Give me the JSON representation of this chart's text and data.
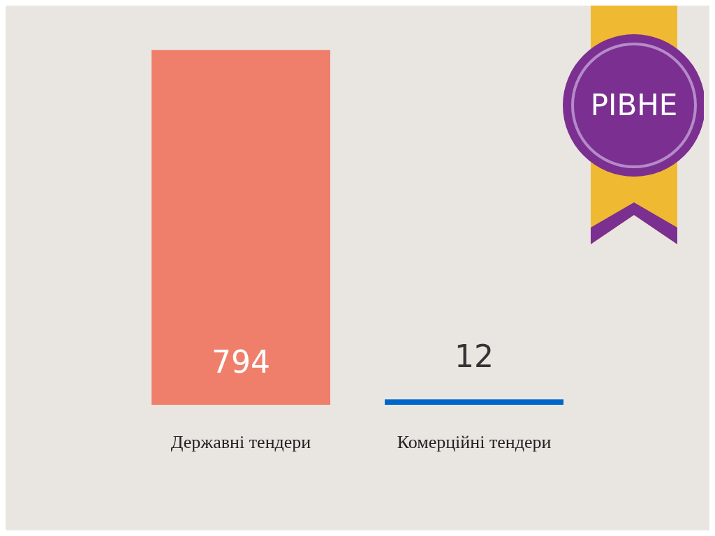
{
  "chart_data": {
    "type": "bar",
    "title": "РІВНЕ",
    "categories": [
      "Державні тендери",
      "Комерційні тендери"
    ],
    "values": [
      794,
      12
    ],
    "colors": [
      "#ef7f6a",
      "#0066cc"
    ],
    "data_labels": true
  }
}
